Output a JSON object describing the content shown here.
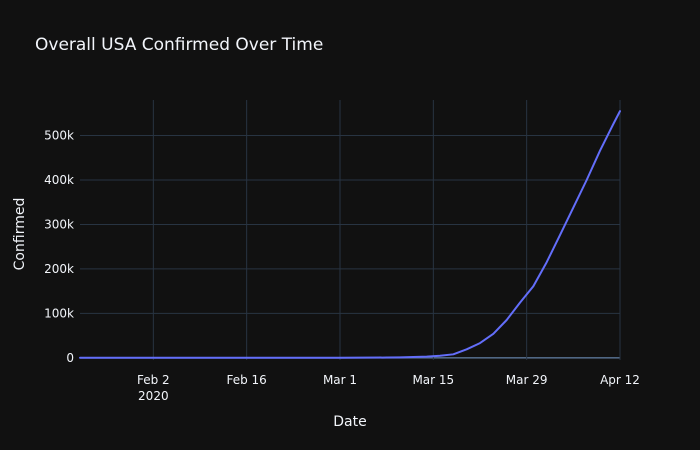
{
  "chart_data": {
    "type": "line",
    "title": "Overall USA Confirmed Over Time",
    "xlabel": "Date",
    "ylabel": "Confirmed",
    "x_range": [
      "2020-01-22",
      "2020-04-12"
    ],
    "ylim": [
      -5000,
      580000
    ],
    "grid": true,
    "background_color": "#111111",
    "grid_color": "#283442",
    "line_color": "#636efa",
    "x_ticks": [
      {
        "date": "2020-02-02",
        "label": "Feb 2",
        "sublabel": "2020"
      },
      {
        "date": "2020-02-16",
        "label": "Feb 16",
        "sublabel": ""
      },
      {
        "date": "2020-03-01",
        "label": "Mar 1",
        "sublabel": ""
      },
      {
        "date": "2020-03-15",
        "label": "Mar 15",
        "sublabel": ""
      },
      {
        "date": "2020-03-29",
        "label": "Mar 29",
        "sublabel": ""
      },
      {
        "date": "2020-04-12",
        "label": "Apr 12",
        "sublabel": ""
      }
    ],
    "y_ticks": [
      {
        "value": 0,
        "label": "0"
      },
      {
        "value": 100000,
        "label": "100k"
      },
      {
        "value": 200000,
        "label": "200k"
      },
      {
        "value": 300000,
        "label": "300k"
      },
      {
        "value": 400000,
        "label": "400k"
      },
      {
        "value": 500000,
        "label": "500k"
      }
    ],
    "series": [
      {
        "x": [
          "2020-01-22",
          "2020-02-01",
          "2020-02-15",
          "2020-03-01",
          "2020-03-08",
          "2020-03-10",
          "2020-03-12",
          "2020-03-14",
          "2020-03-16",
          "2020-03-18",
          "2020-03-20",
          "2020-03-22",
          "2020-03-24",
          "2020-03-26",
          "2020-03-28",
          "2020-03-30",
          "2020-04-01",
          "2020-04-03",
          "2020-04-05",
          "2020-04-07",
          "2020-04-09",
          "2020-04-11",
          "2020-04-12"
        ],
        "y": [
          1,
          8,
          15,
          75,
          540,
          1000,
          1650,
          2700,
          4600,
          7800,
          19000,
          33000,
          54000,
          85000,
          124000,
          161000,
          215000,
          276000,
          338000,
          400000,
          466000,
          526000,
          555000
        ]
      }
    ]
  }
}
